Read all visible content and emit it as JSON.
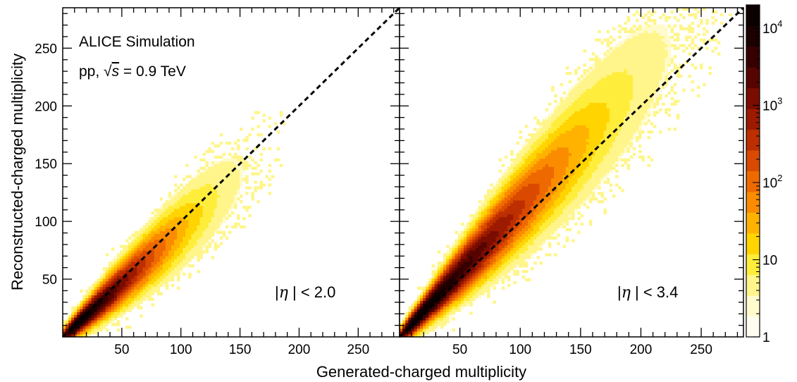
{
  "chart_data": {
    "type": "heatmap",
    "xlabel": "Generated-charged multiplicity",
    "ylabel": "Reconstructed-charged multiplicity",
    "xlim": [
      0,
      285
    ],
    "ylim": [
      0,
      285
    ],
    "x_ticks": [
      "50",
      "100",
      "150",
      "200",
      "250"
    ],
    "y_ticks": [
      "50",
      "100",
      "150",
      "200",
      "250"
    ],
    "z_scale": "log",
    "z_range": [
      1,
      20000
    ],
    "z_ticks": [
      {
        "base": "1",
        "exp": ""
      },
      {
        "base": "10",
        "exp": ""
      },
      {
        "base": "10",
        "exp": "2"
      },
      {
        "base": "10",
        "exp": "3"
      },
      {
        "base": "10",
        "exp": "4"
      }
    ],
    "colormap": [
      "#fffdf0",
      "#fffbcc",
      "#fff58a",
      "#ffed3c",
      "#ffd400",
      "#ffb300",
      "#fb8c00",
      "#ee6a00",
      "#d94a00",
      "#bd2f00",
      "#9c1a00",
      "#7a0c00",
      "#560400",
      "#360000",
      "#1c0000",
      "#0a0000"
    ],
    "annotations": {
      "experiment": "ALICE Simulation",
      "system_prefix": "pp, ",
      "sqrt_symbol": "√",
      "s_var": "s",
      "system_suffix": " = 0.9 TeV"
    },
    "panels": [
      {
        "label": {
          "left_bar": "|",
          "eta": "η",
          "rest": " | < 2.0"
        },
        "diagonal": "y = x",
        "distribution": {
          "ridge_slope": 0.93,
          "x_peak": 5,
          "x_max": 150,
          "width_frac": 0.14,
          "trend_points": [
            [
              20,
              18
            ],
            [
              50,
              46
            ],
            [
              80,
              74
            ],
            [
              100,
              93
            ],
            [
              120,
              112
            ],
            [
              140,
              130
            ]
          ]
        }
      },
      {
        "label": {
          "left_bar": "|",
          "eta": "η",
          "rest": " | < 3.4"
        },
        "diagonal": "y = x",
        "distribution": {
          "ridge_slope": 1.12,
          "x_peak": 8,
          "x_max": 220,
          "width_frac": 0.16,
          "trend_points": [
            [
              20,
              22
            ],
            [
              50,
              55
            ],
            [
              80,
              89
            ],
            [
              100,
              111
            ],
            [
              130,
              145
            ],
            [
              160,
              178
            ],
            [
              190,
              212
            ]
          ]
        }
      }
    ]
  }
}
